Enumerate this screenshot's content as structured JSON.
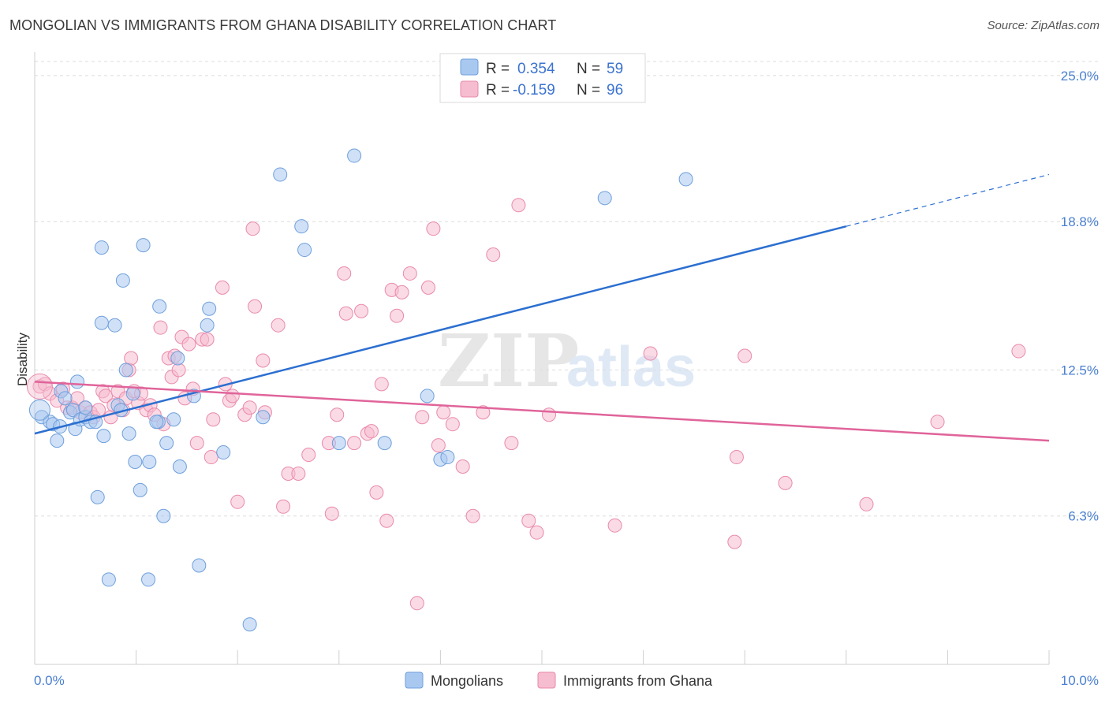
{
  "title": "MONGOLIAN VS IMMIGRANTS FROM GHANA DISABILITY CORRELATION CHART",
  "source": "Source: ZipAtlas.com",
  "watermark": {
    "zip": "ZIP",
    "atlas": "atlas"
  },
  "colors": {
    "blue_fill": "#a9c8f0",
    "blue_stroke": "#6e9fdc",
    "blue_line": "#2c6fd0",
    "pink_fill": "#f6bcd0",
    "pink_stroke": "#e98aab",
    "pink_line": "#e0649a",
    "axis_label": "#4a7fd0",
    "grid": "#dcdcdc"
  },
  "legend": {
    "rows": [
      {
        "r_label": "R =",
        "r_value": "0.354",
        "n_label": "N =",
        "n_value": "59"
      },
      {
        "r_label": "R =",
        "r_value": "-0.159",
        "n_label": "N =",
        "n_value": "96"
      }
    ]
  },
  "bottom_legend": [
    "Mongolians",
    "Immigrants from Ghana"
  ],
  "chart_data": {
    "type": "scatter",
    "title": "MONGOLIAN VS IMMIGRANTS FROM GHANA DISABILITY CORRELATION CHART",
    "xlabel": "",
    "ylabel": "Disability",
    "xlim": [
      0,
      10
    ],
    "ylim": [
      0,
      25.6
    ],
    "x_tick_labels": [
      "0.0%",
      "10.0%"
    ],
    "y_ticks": [
      6.3,
      12.5,
      18.8,
      25.0
    ],
    "y_tick_labels": [
      "6.3%",
      "12.5%",
      "18.8%",
      "25.0%"
    ],
    "grid": true,
    "legend_position": "top-center",
    "series": [
      {
        "name": "Mongolians",
        "R": 0.354,
        "N": 59,
        "trend": {
          "x0": 0.0,
          "y0": 9.8,
          "x1": 8.0,
          "y1": 18.6,
          "dashed_to_x": 10.0,
          "dashed_to_y": 20.8
        },
        "points": [
          [
            0.07,
            10.5
          ],
          [
            0.15,
            10.3
          ],
          [
            0.18,
            10.2
          ],
          [
            0.22,
            9.5
          ],
          [
            0.25,
            10.1
          ],
          [
            0.35,
            10.7
          ],
          [
            0.38,
            10.8
          ],
          [
            0.4,
            10.0
          ],
          [
            0.42,
            12.0
          ],
          [
            0.45,
            10.4
          ],
          [
            0.5,
            10.5
          ],
          [
            0.55,
            10.3
          ],
          [
            0.6,
            10.3
          ],
          [
            0.62,
            7.1
          ],
          [
            0.66,
            14.5
          ],
          [
            0.66,
            17.7
          ],
          [
            0.68,
            9.7
          ],
          [
            0.73,
            3.6
          ],
          [
            0.79,
            14.4
          ],
          [
            0.82,
            11.0
          ],
          [
            0.87,
            16.3
          ],
          [
            0.9,
            12.5
          ],
          [
            0.93,
            9.8
          ],
          [
            0.97,
            11.5
          ],
          [
            0.99,
            8.6
          ],
          [
            1.04,
            7.4
          ],
          [
            1.07,
            17.8
          ],
          [
            1.12,
            3.6
          ],
          [
            1.13,
            8.6
          ],
          [
            1.22,
            10.3
          ],
          [
            1.23,
            15.2
          ],
          [
            1.27,
            6.3
          ],
          [
            1.3,
            9.4
          ],
          [
            1.37,
            10.4
          ],
          [
            1.41,
            13.0
          ],
          [
            1.43,
            8.4
          ],
          [
            1.57,
            11.4
          ],
          [
            1.62,
            4.2
          ],
          [
            1.7,
            14.4
          ],
          [
            1.72,
            15.1
          ],
          [
            1.86,
            9.0
          ],
          [
            2.12,
            1.7
          ],
          [
            2.25,
            10.5
          ],
          [
            2.42,
            20.8
          ],
          [
            2.63,
            18.6
          ],
          [
            2.66,
            17.6
          ],
          [
            3.0,
            9.4
          ],
          [
            3.15,
            21.6
          ],
          [
            3.45,
            9.4
          ],
          [
            3.87,
            11.4
          ],
          [
            4.0,
            8.7
          ],
          [
            4.07,
            8.8
          ],
          [
            5.62,
            19.8
          ],
          [
            6.42,
            20.6
          ],
          [
            0.26,
            11.6
          ],
          [
            0.5,
            10.9
          ],
          [
            1.2,
            10.3
          ],
          [
            0.3,
            11.3
          ],
          [
            0.85,
            10.8
          ]
        ]
      },
      {
        "name": "Immigrants from Ghana",
        "R": -0.159,
        "N": 96,
        "trend": {
          "x0": 0.0,
          "y0": 12.0,
          "x1": 10.0,
          "y1": 9.5
        },
        "points": [
          [
            0.05,
            11.8
          ],
          [
            0.1,
            11.9
          ],
          [
            0.15,
            11.5
          ],
          [
            0.22,
            11.2
          ],
          [
            0.28,
            11.7
          ],
          [
            0.32,
            10.9
          ],
          [
            0.37,
            10.9
          ],
          [
            0.42,
            11.3
          ],
          [
            0.45,
            10.7
          ],
          [
            0.5,
            10.9
          ],
          [
            0.55,
            10.7
          ],
          [
            0.58,
            10.5
          ],
          [
            0.63,
            10.8
          ],
          [
            0.67,
            11.6
          ],
          [
            0.7,
            11.4
          ],
          [
            0.75,
            10.5
          ],
          [
            0.78,
            11.0
          ],
          [
            0.82,
            11.6
          ],
          [
            0.87,
            10.8
          ],
          [
            0.9,
            11.3
          ],
          [
            0.93,
            12.5
          ],
          [
            0.95,
            13.0
          ],
          [
            0.98,
            11.6
          ],
          [
            1.02,
            11.1
          ],
          [
            1.05,
            11.5
          ],
          [
            1.1,
            10.8
          ],
          [
            1.14,
            11.0
          ],
          [
            1.18,
            10.6
          ],
          [
            1.24,
            14.3
          ],
          [
            1.27,
            10.2
          ],
          [
            1.32,
            13.0
          ],
          [
            1.35,
            12.2
          ],
          [
            1.38,
            13.1
          ],
          [
            1.42,
            12.5
          ],
          [
            1.45,
            13.9
          ],
          [
            1.48,
            11.3
          ],
          [
            1.52,
            13.6
          ],
          [
            1.56,
            11.7
          ],
          [
            1.6,
            9.4
          ],
          [
            1.65,
            13.8
          ],
          [
            1.7,
            13.8
          ],
          [
            1.74,
            8.8
          ],
          [
            1.76,
            10.4
          ],
          [
            1.85,
            16.0
          ],
          [
            1.88,
            11.9
          ],
          [
            1.92,
            11.2
          ],
          [
            1.95,
            11.4
          ],
          [
            2.0,
            6.9
          ],
          [
            2.07,
            10.6
          ],
          [
            2.12,
            10.9
          ],
          [
            2.15,
            18.5
          ],
          [
            2.17,
            15.2
          ],
          [
            2.25,
            12.9
          ],
          [
            2.27,
            10.7
          ],
          [
            2.4,
            14.4
          ],
          [
            2.45,
            6.7
          ],
          [
            2.5,
            8.1
          ],
          [
            2.6,
            8.1
          ],
          [
            2.7,
            8.9
          ],
          [
            2.9,
            9.4
          ],
          [
            2.93,
            6.4
          ],
          [
            2.98,
            10.6
          ],
          [
            3.05,
            16.6
          ],
          [
            3.07,
            14.9
          ],
          [
            3.15,
            9.4
          ],
          [
            3.22,
            15.0
          ],
          [
            3.28,
            9.8
          ],
          [
            3.32,
            9.9
          ],
          [
            3.37,
            7.3
          ],
          [
            3.42,
            11.9
          ],
          [
            3.47,
            6.1
          ],
          [
            3.52,
            15.9
          ],
          [
            3.57,
            14.8
          ],
          [
            3.62,
            15.8
          ],
          [
            3.7,
            16.6
          ],
          [
            3.77,
            2.6
          ],
          [
            3.82,
            10.5
          ],
          [
            3.88,
            16.0
          ],
          [
            3.93,
            18.5
          ],
          [
            3.98,
            9.3
          ],
          [
            4.03,
            10.7
          ],
          [
            4.12,
            10.2
          ],
          [
            4.22,
            8.4
          ],
          [
            4.32,
            6.3
          ],
          [
            4.42,
            10.7
          ],
          [
            4.52,
            17.4
          ],
          [
            4.7,
            9.4
          ],
          [
            4.77,
            19.5
          ],
          [
            4.87,
            6.1
          ],
          [
            4.95,
            5.6
          ],
          [
            5.07,
            10.6
          ],
          [
            5.72,
            5.9
          ],
          [
            6.07,
            13.2
          ],
          [
            6.92,
            8.8
          ],
          [
            6.9,
            5.2
          ],
          [
            7.0,
            13.1
          ]
        ]
      }
    ],
    "extra_points_ghana": [
      [
        7.4,
        7.7
      ],
      [
        8.2,
        6.8
      ],
      [
        8.9,
        10.3
      ],
      [
        9.7,
        13.3
      ]
    ]
  }
}
